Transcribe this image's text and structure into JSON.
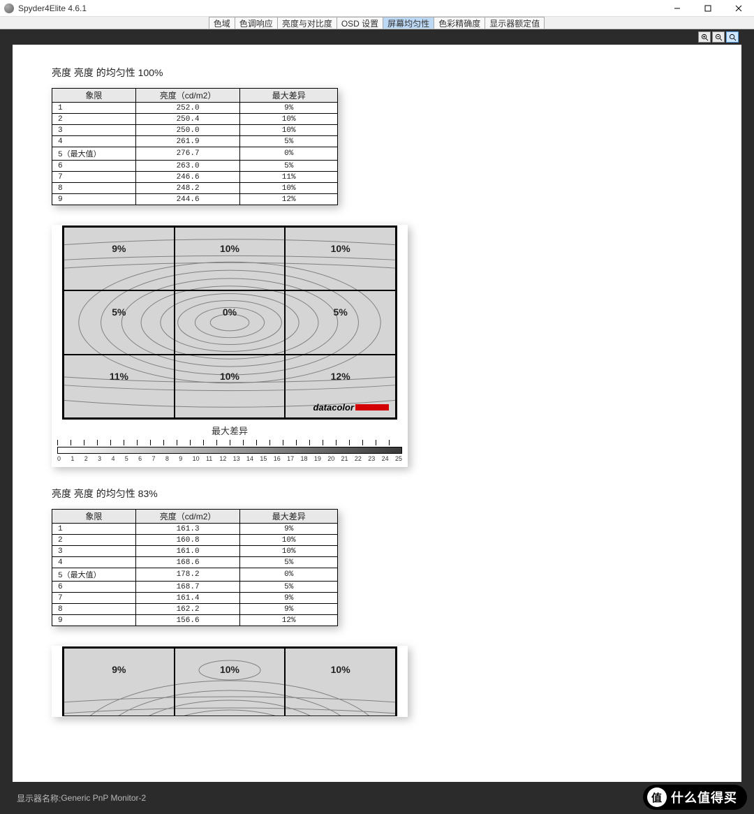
{
  "window": {
    "title": "Spyder4Elite 4.6.1"
  },
  "tabs": {
    "items": [
      "色域",
      "色调响应",
      "亮度与对比度",
      "OSD 设置",
      "屏幕均匀性",
      "色彩精确度",
      "显示器额定值"
    ],
    "active_index": 4
  },
  "zoom": {
    "active_index": 2
  },
  "section1": {
    "title": "亮度 亮度 的均匀性 100%",
    "table": {
      "columns": [
        "象限",
        "亮度（cd/m2）",
        "最大差异"
      ],
      "rows": [
        [
          "1",
          "252.0",
          "9%"
        ],
        [
          "2",
          "250.4",
          "10%"
        ],
        [
          "3",
          "250.0",
          "10%"
        ],
        [
          "4",
          "261.9",
          "5%"
        ],
        [
          "5（最大值）",
          "276.7",
          "0%"
        ],
        [
          "6",
          "263.0",
          "5%"
        ],
        [
          "7",
          "246.6",
          "11%"
        ],
        [
          "8",
          "248.2",
          "10%"
        ],
        [
          "9",
          "244.6",
          "12%"
        ]
      ]
    },
    "map": {
      "grid_labels": [
        "9%",
        "10%",
        "10%",
        "5%",
        "0%",
        "5%",
        "11%",
        "10%",
        "12%"
      ],
      "brand": "datacolor",
      "scale_caption": "最大差异",
      "scale_range": {
        "min": 0,
        "max": 25,
        "step": 1
      },
      "colors": {
        "bg": "#d5d5d5",
        "border": "#000000",
        "contour": "#888888",
        "brand_bar": "#d40000"
      }
    }
  },
  "section2": {
    "title": "亮度 亮度 的均匀性 83%",
    "table": {
      "columns": [
        "象限",
        "亮度（cd/m2）",
        "最大差异"
      ],
      "rows": [
        [
          "1",
          "161.3",
          "9%"
        ],
        [
          "2",
          "160.8",
          "10%"
        ],
        [
          "3",
          "161.0",
          "10%"
        ],
        [
          "4",
          "168.6",
          "5%"
        ],
        [
          "5（最大值）",
          "178.2",
          "0%"
        ],
        [
          "6",
          "168.7",
          "5%"
        ],
        [
          "7",
          "161.4",
          "9%"
        ],
        [
          "8",
          "162.2",
          "9%"
        ],
        [
          "9",
          "156.6",
          "12%"
        ]
      ]
    },
    "map": {
      "grid_labels": [
        "9%",
        "10%",
        "10%"
      ]
    }
  },
  "footer": {
    "label_prefix": "显示器名称: ",
    "monitor_name": "Generic PnP Monitor-2"
  },
  "watermark": {
    "badge": "值",
    "text": "什么值得买"
  }
}
